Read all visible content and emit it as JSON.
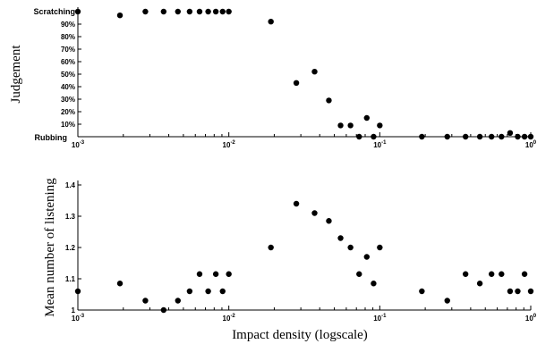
{
  "chart_data": [
    {
      "type": "scatter",
      "ylabel": "Judgement",
      "y_top_label": "Scratching",
      "y_bottom_label": "Rubbing",
      "x_scale": "log",
      "xlim": [
        0.001,
        1
      ],
      "ylim": [
        0,
        100
      ],
      "x_ticks": [
        {
          "base": "10",
          "exp": "-3",
          "value": 0.001
        },
        {
          "base": "10",
          "exp": "-2",
          "value": 0.01
        },
        {
          "base": "10",
          "exp": "-1",
          "value": 0.1
        },
        {
          "base": "10",
          "exp": "0",
          "value": 1
        }
      ],
      "y_ticks": [
        {
          "value": 10,
          "label": "10%"
        },
        {
          "value": 20,
          "label": "20%"
        },
        {
          "value": 30,
          "label": "30%"
        },
        {
          "value": 40,
          "label": "40%"
        },
        {
          "value": 50,
          "label": "50%"
        },
        {
          "value": 60,
          "label": "60%"
        },
        {
          "value": 70,
          "label": "70%"
        },
        {
          "value": 80,
          "label": "80%"
        },
        {
          "value": 90,
          "label": "90%"
        }
      ],
      "grid": false,
      "marker_color": "#000000",
      "points": [
        {
          "x": 0.001,
          "y": 100
        },
        {
          "x": 0.0019,
          "y": 97
        },
        {
          "x": 0.0028,
          "y": 100
        },
        {
          "x": 0.0037,
          "y": 100
        },
        {
          "x": 0.0046,
          "y": 100
        },
        {
          "x": 0.0055,
          "y": 100
        },
        {
          "x": 0.0064,
          "y": 100
        },
        {
          "x": 0.0073,
          "y": 100
        },
        {
          "x": 0.0082,
          "y": 100
        },
        {
          "x": 0.0091,
          "y": 100
        },
        {
          "x": 0.01,
          "y": 100
        },
        {
          "x": 0.019,
          "y": 92
        },
        {
          "x": 0.028,
          "y": 43
        },
        {
          "x": 0.037,
          "y": 52
        },
        {
          "x": 0.046,
          "y": 29
        },
        {
          "x": 0.055,
          "y": 9
        },
        {
          "x": 0.064,
          "y": 9
        },
        {
          "x": 0.073,
          "y": 0
        },
        {
          "x": 0.082,
          "y": 15
        },
        {
          "x": 0.091,
          "y": 0
        },
        {
          "x": 0.1,
          "y": 9
        },
        {
          "x": 0.19,
          "y": 0
        },
        {
          "x": 0.28,
          "y": 0
        },
        {
          "x": 0.37,
          "y": 0
        },
        {
          "x": 0.46,
          "y": 0
        },
        {
          "x": 0.55,
          "y": 0
        },
        {
          "x": 0.64,
          "y": 0
        },
        {
          "x": 0.73,
          "y": 3
        },
        {
          "x": 0.82,
          "y": 0
        },
        {
          "x": 0.91,
          "y": 0
        },
        {
          "x": 1,
          "y": 0
        }
      ]
    },
    {
      "type": "scatter",
      "xlabel": "Impact density (logscale)",
      "ylabel": "Mean number of listening",
      "x_scale": "log",
      "xlim": [
        0.001,
        1
      ],
      "ylim": [
        1,
        1.4
      ],
      "x_ticks": [
        {
          "base": "10",
          "exp": "-3",
          "value": 0.001
        },
        {
          "base": "10",
          "exp": "-2",
          "value": 0.01
        },
        {
          "base": "10",
          "exp": "-1",
          "value": 0.1
        },
        {
          "base": "10",
          "exp": "0",
          "value": 1
        }
      ],
      "y_ticks": [
        {
          "value": 1,
          "label": "1"
        },
        {
          "value": 1.1,
          "label": "1.1"
        },
        {
          "value": 1.2,
          "label": "1.2"
        },
        {
          "value": 1.3,
          "label": "1.3"
        },
        {
          "value": 1.4,
          "label": "1.4"
        }
      ],
      "grid": false,
      "marker_color": "#000000",
      "points": [
        {
          "x": 0.001,
          "y": 1.06
        },
        {
          "x": 0.0019,
          "y": 1.085
        },
        {
          "x": 0.0028,
          "y": 1.03
        },
        {
          "x": 0.0037,
          "y": 1.0
        },
        {
          "x": 0.0046,
          "y": 1.03
        },
        {
          "x": 0.0055,
          "y": 1.06
        },
        {
          "x": 0.0064,
          "y": 1.115
        },
        {
          "x": 0.0073,
          "y": 1.06
        },
        {
          "x": 0.0082,
          "y": 1.115
        },
        {
          "x": 0.0091,
          "y": 1.06
        },
        {
          "x": 0.01,
          "y": 1.115
        },
        {
          "x": 0.019,
          "y": 1.2
        },
        {
          "x": 0.028,
          "y": 1.34
        },
        {
          "x": 0.037,
          "y": 1.31
        },
        {
          "x": 0.046,
          "y": 1.285
        },
        {
          "x": 0.055,
          "y": 1.23
        },
        {
          "x": 0.064,
          "y": 1.2
        },
        {
          "x": 0.073,
          "y": 1.115
        },
        {
          "x": 0.082,
          "y": 1.17
        },
        {
          "x": 0.091,
          "y": 1.085
        },
        {
          "x": 0.1,
          "y": 1.2
        },
        {
          "x": 0.19,
          "y": 1.06
        },
        {
          "x": 0.28,
          "y": 1.03
        },
        {
          "x": 0.37,
          "y": 1.115
        },
        {
          "x": 0.46,
          "y": 1.085
        },
        {
          "x": 0.55,
          "y": 1.115
        },
        {
          "x": 0.64,
          "y": 1.115
        },
        {
          "x": 0.73,
          "y": 1.06
        },
        {
          "x": 0.82,
          "y": 1.06
        },
        {
          "x": 0.91,
          "y": 1.115
        },
        {
          "x": 1,
          "y": 1.06
        }
      ]
    }
  ]
}
